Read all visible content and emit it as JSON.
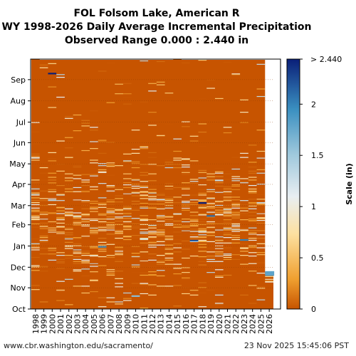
{
  "title_lines": [
    "FOL Folsom Lake, American R",
    "WY 1998-2026 Daily Average Incremental Precipitation",
    "Observed Range 0.000 : 2.440 in"
  ],
  "footer": {
    "url": "www.cbr.washington.edu/sacramento/",
    "timestamp": "23 Nov 2025 15:45:06 PST"
  },
  "chart_data": {
    "type": "heatmap",
    "title": "FOL Folsom Lake, American R",
    "subtitle": "WY 1998-2026 Daily Average Incremental Precipitation",
    "observed_range": [
      0.0,
      2.44
    ],
    "x_categories": [
      "1998",
      "1999",
      "2000",
      "2001",
      "2002",
      "2003",
      "2004",
      "2005",
      "2006",
      "2007",
      "2008",
      "2009",
      "2010",
      "2011",
      "2012",
      "2013",
      "2014",
      "2015",
      "2016",
      "2017",
      "2018",
      "2019",
      "2020",
      "2021",
      "2022",
      "2023",
      "2024",
      "2025",
      "2026"
    ],
    "y_month_labels": [
      "Oct",
      "Nov",
      "Dec",
      "Jan",
      "Feb",
      "Mar",
      "Apr",
      "May",
      "Jun",
      "Jul",
      "Aug",
      "Sep"
    ],
    "y_days_per_month": [
      31,
      30,
      31,
      31,
      28,
      31,
      30,
      31,
      30,
      31,
      31,
      30
    ],
    "colorbar": {
      "label": "Scale (in)",
      "min": 0,
      "max": 2.44,
      "ticks": [
        "0",
        "0.5",
        "1",
        "1.5",
        "2",
        "> 2.440"
      ],
      "tick_values": [
        0,
        0.5,
        1,
        1.5,
        2,
        2.44
      ],
      "colors": [
        "#c75400",
        "#f0a030",
        "#fde0a0",
        "#e8eef2",
        "#9ec8dc",
        "#3a8fc0",
        "#0a1f78"
      ]
    },
    "background_color": "#c75400",
    "current_water_year_days_observed": 54,
    "notable_events": [
      {
        "year": "2000",
        "date": "Sep 10",
        "value": 2.44
      },
      {
        "year": "2010",
        "date": "Oct 20",
        "value": 1.6
      },
      {
        "year": "2026",
        "date": "Nov 22",
        "value": 1.8
      },
      {
        "year": "2018",
        "date": "Mar 05",
        "value": 2.44
      },
      {
        "year": "2017",
        "date": "Jan 09",
        "value": 2.2
      },
      {
        "year": "2019",
        "date": "Feb 14",
        "value": 2.1
      },
      {
        "year": "2023",
        "date": "Jan 10",
        "value": 2.0
      },
      {
        "year": "2006",
        "date": "Dec 31",
        "value": 1.9
      }
    ],
    "grid": true
  }
}
